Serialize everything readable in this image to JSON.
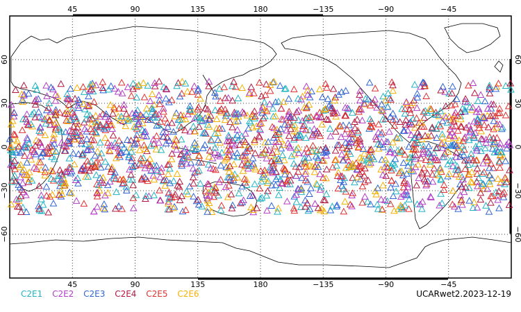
{
  "top_lon_labels": [
    "45",
    "90",
    "135",
    "180",
    "−135",
    "−90",
    "−45"
  ],
  "bottom_lon_labels": [
    "45",
    "90",
    "135",
    "180",
    "−135",
    "−90",
    "−45"
  ],
  "left_lat_labels": [
    "60",
    "30",
    "0",
    "−30",
    "−60"
  ],
  "right_lat_labels": [
    "60",
    "30",
    "0",
    "−30",
    "−60"
  ],
  "legend": [
    {
      "label": "C2E1",
      "color": "#1fb3c3"
    },
    {
      "label": "C2E2",
      "color": "#b23cc8"
    },
    {
      "label": "C2E3",
      "color": "#2f63d6"
    },
    {
      "label": "C2E4",
      "color": "#b2183f"
    },
    {
      "label": "C2E5",
      "color": "#e03030"
    },
    {
      "label": "C2E6",
      "color": "#f4b000"
    }
  ],
  "credit": "UCARwet2.2023-12-19",
  "map_data": {
    "projection": "cylindrical equidistant",
    "lon_range": [
      0,
      360
    ],
    "lat_range": [
      -90,
      90
    ],
    "gridlines": true,
    "marker": "triangle",
    "observation_lat_range": [
      -45,
      45
    ],
    "marker_colors": [
      "#1fb3c3",
      "#b23cc8",
      "#2f63d6",
      "#b2183f",
      "#e03030",
      "#f4b000"
    ]
  }
}
